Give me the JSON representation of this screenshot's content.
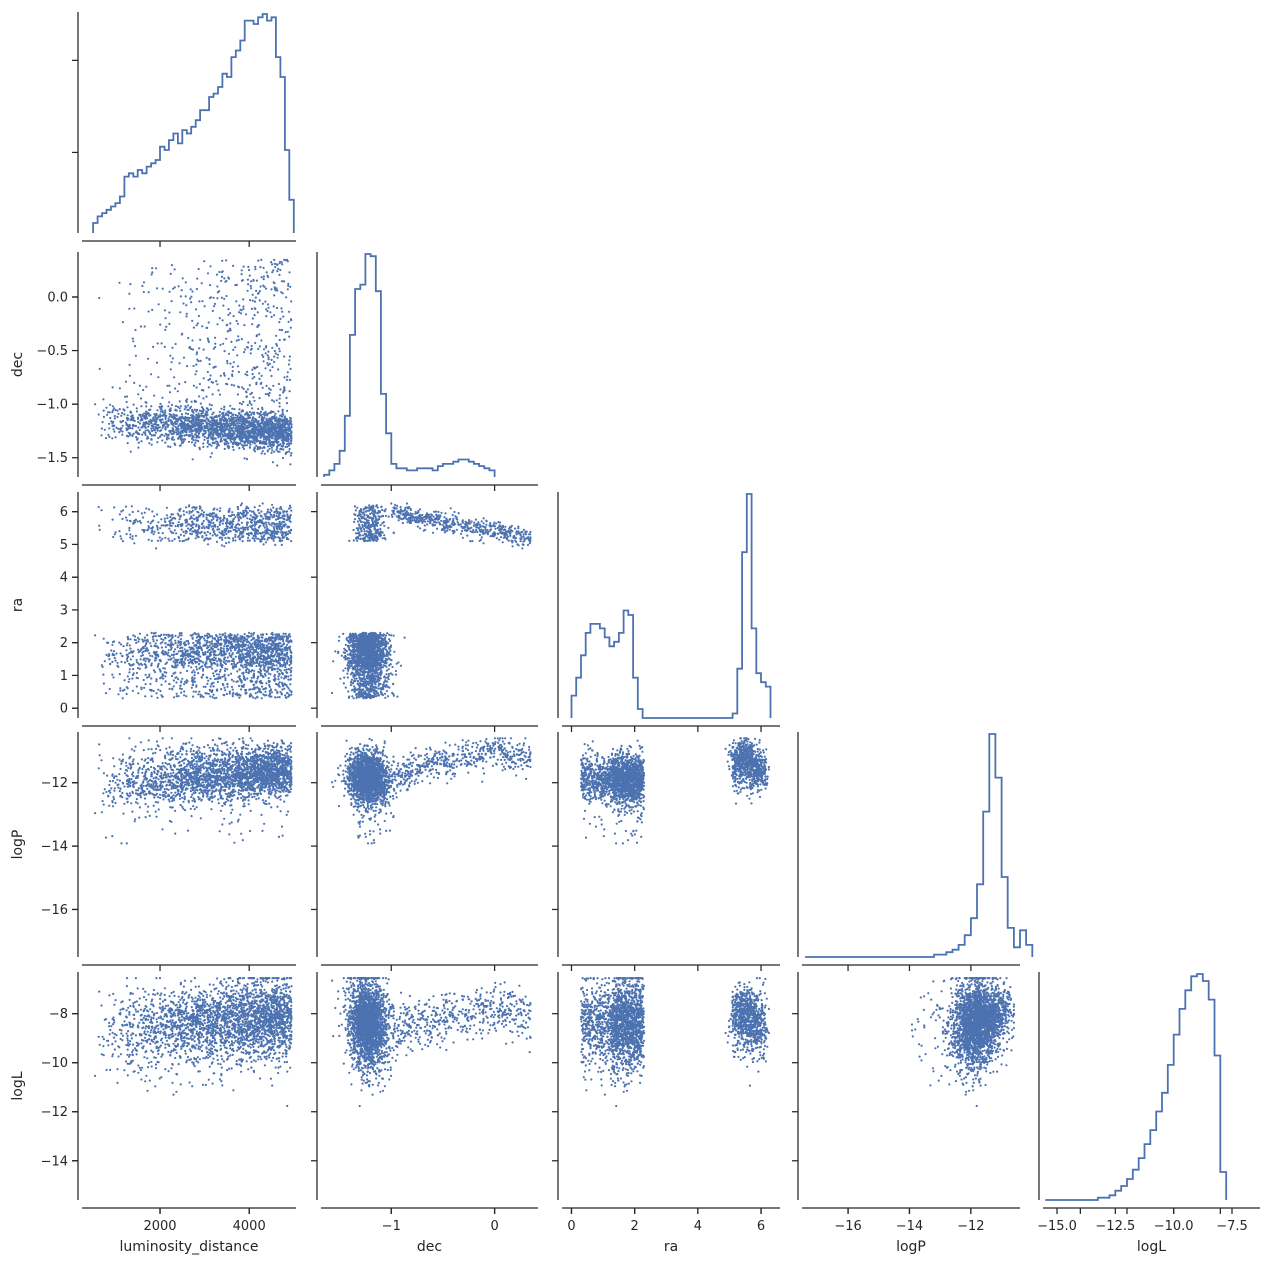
{
  "chart_data": {
    "type": "scatter",
    "layout": "corner pair plot",
    "variables": [
      "luminosity_distance",
      "dec",
      "ra",
      "logP",
      "logL"
    ],
    "axis_labels": [
      "luminosity_distance",
      "dec",
      "ra",
      "logP",
      "logL"
    ],
    "colors": {
      "series": "#4c72b0",
      "axis": "#262626"
    },
    "ranges": {
      "luminosity_distance": [
        250,
        5050
      ],
      "dec": [
        -1.68,
        0.42
      ],
      "ra": [
        -0.3,
        6.6
      ],
      "logP": [
        -17.5,
        -10.4
      ],
      "logL": [
        -15.6,
        -6.3
      ]
    },
    "ticks": {
      "luminosity_distance": [
        2000,
        4000
      ],
      "dec": [
        -1,
        0
      ],
      "ra": [
        0,
        2,
        4,
        6
      ],
      "logP": [
        -16,
        -14,
        -12
      ],
      "logL": [
        -14,
        -12,
        -10,
        -8
      ]
    },
    "tick_labels": {
      "luminosity_distance": [
        "2000",
        "4000"
      ],
      "dec": [
        "−1.5",
        "−1.0",
        "−0.5",
        "0.0"
      ],
      "dec_bottom": [
        "−1",
        "0"
      ],
      "ra": [
        "0",
        "1",
        "2",
        "3",
        "4",
        "5",
        "6"
      ],
      "ra_bottom": [
        "0",
        "2",
        "4",
        "6"
      ],
      "logP": [
        "−16",
        "−14",
        "−12"
      ],
      "logL": [
        "−14",
        "−12",
        "−10",
        "−8"
      ],
      "logL_bottom": [
        "−15.0",
        "−12.5",
        "−10.0",
        "−7.5"
      ]
    },
    "marginal_histograms": {
      "luminosity_distance": {
        "bin_edges_start": 500,
        "bin_width": 100,
        "counts": [
          3,
          5,
          6,
          7,
          8,
          9,
          11,
          17,
          18,
          17,
          19,
          18,
          20,
          21,
          22,
          26,
          25,
          28,
          30,
          27,
          31,
          30,
          32,
          34,
          37,
          37,
          41,
          42,
          44,
          48,
          47,
          53,
          55,
          58,
          64,
          64,
          63,
          65,
          66,
          64,
          65,
          53,
          47,
          25,
          10
        ]
      },
      "dec": {
        "bin_edges_start": -1.65,
        "bin_width": 0.05,
        "counts": [
          1,
          3,
          6,
          12,
          28,
          65,
          86,
          88,
          102,
          101,
          85,
          38,
          20,
          6,
          4,
          4,
          3,
          3,
          4,
          4,
          4,
          3,
          5,
          6,
          6,
          7,
          8,
          8,
          7,
          6,
          5,
          4,
          3
        ]
      },
      "ra": {
        "bin_edges_start": 0,
        "bin_width": 0.15,
        "counts": [
          5,
          9,
          14,
          19,
          21,
          21,
          20,
          18,
          16,
          17,
          19,
          24,
          23,
          9,
          2,
          0,
          0,
          0,
          0,
          0,
          0,
          0,
          0,
          0,
          0,
          0,
          0,
          0,
          0,
          0,
          0,
          0,
          0,
          0,
          1,
          11,
          37,
          50,
          20,
          10,
          8,
          7
        ]
      },
      "logP": {
        "bin_edges_start": -17.4,
        "bin_width": 0.2,
        "counts": [
          0,
          0,
          0,
          0,
          0,
          0,
          0,
          0,
          0,
          0,
          0,
          0,
          0,
          0,
          0,
          0,
          0,
          0,
          0,
          0,
          0,
          1,
          1,
          2,
          3,
          5,
          9,
          16,
          30,
          60,
          92,
          74,
          33,
          12,
          4,
          11,
          5
        ]
      },
      "logL": {
        "bin_edges_start": -15.5,
        "bin_width": 0.25,
        "counts": [
          0,
          0,
          0,
          0,
          0,
          0,
          0,
          0,
          0,
          1,
          1,
          2,
          4,
          6,
          9,
          13,
          18,
          24,
          30,
          38,
          46,
          58,
          71,
          82,
          90,
          96,
          97,
          94,
          86,
          62,
          12
        ]
      }
    }
  }
}
